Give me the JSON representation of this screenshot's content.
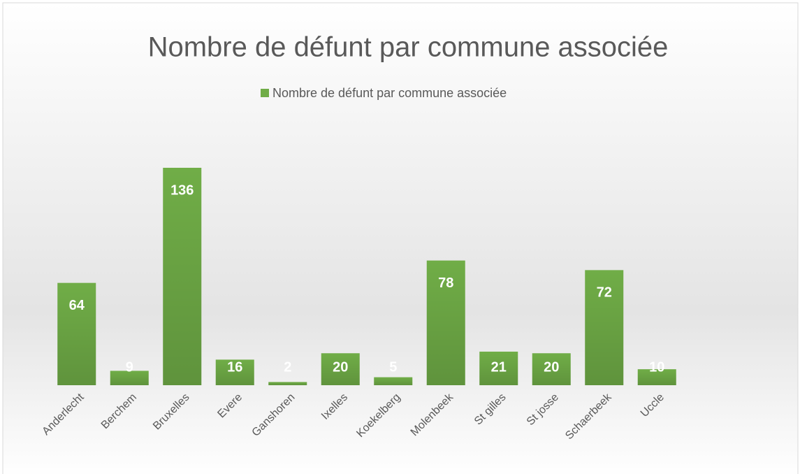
{
  "chart_data": {
    "type": "bar",
    "title": "Nombre de défunt par commune associée",
    "categories": [
      "Anderlecht",
      "Berchem",
      "Bruxelles",
      "Evere",
      "Ganshoren",
      "Ixelles",
      "Koekelberg",
      "Molenbeek",
      "St gilles",
      "St josse",
      "Schaerbeek",
      "Uccle"
    ],
    "series": [
      {
        "name": "Nombre de défunt par commune associée",
        "color": "#70ad47",
        "values": [
          64,
          9,
          136,
          16,
          2,
          20,
          5,
          78,
          21,
          20,
          72,
          10
        ]
      }
    ],
    "legend": "top"
  }
}
